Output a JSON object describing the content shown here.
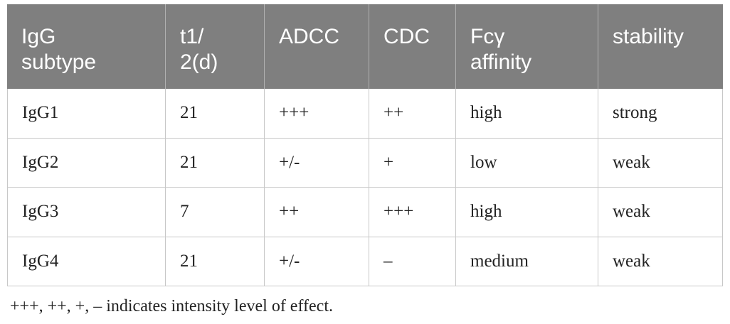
{
  "table": {
    "header": [
      [
        "IgG",
        "subtype"
      ],
      [
        "t1/",
        "2(d)"
      ],
      [
        "ADCC"
      ],
      [
        "CDC"
      ],
      [
        "Fcγ",
        "affinity"
      ],
      [
        "stability"
      ]
    ],
    "rows": [
      [
        "IgG1",
        "21",
        "+++",
        "++",
        "high",
        "strong"
      ],
      [
        "IgG2",
        "21",
        "+/-",
        "+",
        "low",
        "weak"
      ],
      [
        "IgG3",
        "7",
        "++",
        "+++",
        "high",
        "weak"
      ],
      [
        "IgG4",
        "21",
        "+/-",
        "–",
        "medium",
        "weak"
      ]
    ]
  },
  "footnote": "+++, ++, +, – indicates intensity level of effect."
}
